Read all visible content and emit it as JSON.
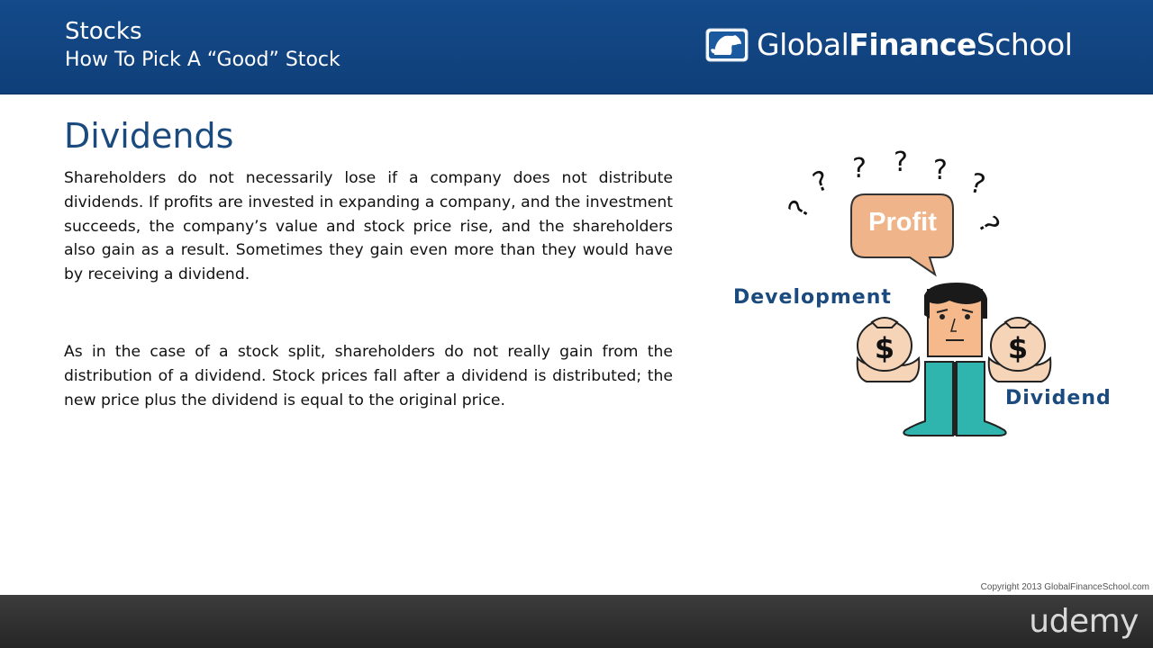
{
  "header": {
    "title": "Stocks",
    "subtitle": "How To Pick A “Good” Stock",
    "logo": {
      "brand_prefix": "Global",
      "brand_bold": "Finance",
      "brand_suffix": "School"
    }
  },
  "main": {
    "heading": "Dividends",
    "paragraphs": [
      "Shareholders do not necessarily lose if a company does not distribute dividends. If profits are invested in expanding a company, and the investment succeeds, the company’s value and stock price rise, and the shareholders also gain as a result. Sometimes they gain even more than they would have by receiving a dividend.",
      "As in the case of a stock split, shareholders do not really gain from the distribution of a dividend. Stock prices fall after a dividend is distributed; the new price plus the dividend is equal to the original price."
    ]
  },
  "illustration": {
    "speech_bubble_text": "Profit",
    "left_label": "Development",
    "right_label": "Dividend",
    "question_mark": "?",
    "money_symbol": "$",
    "icons": [
      "question-mark-icon",
      "speech-bubble-icon",
      "man-icon",
      "money-bag-icon"
    ],
    "colors": {
      "bubble": "#f0b48a",
      "shirt": "#2fb5ad",
      "bag": "#f5d4b8",
      "label": "#1b4a7e"
    }
  },
  "footer": {
    "copyright": "Copyright 2013 GlobalFinanceSchool.com",
    "platform": "udemy"
  },
  "colors": {
    "header_bg": "#144a8a",
    "footer_bg": "#333333",
    "heading": "#1b4a7e"
  }
}
